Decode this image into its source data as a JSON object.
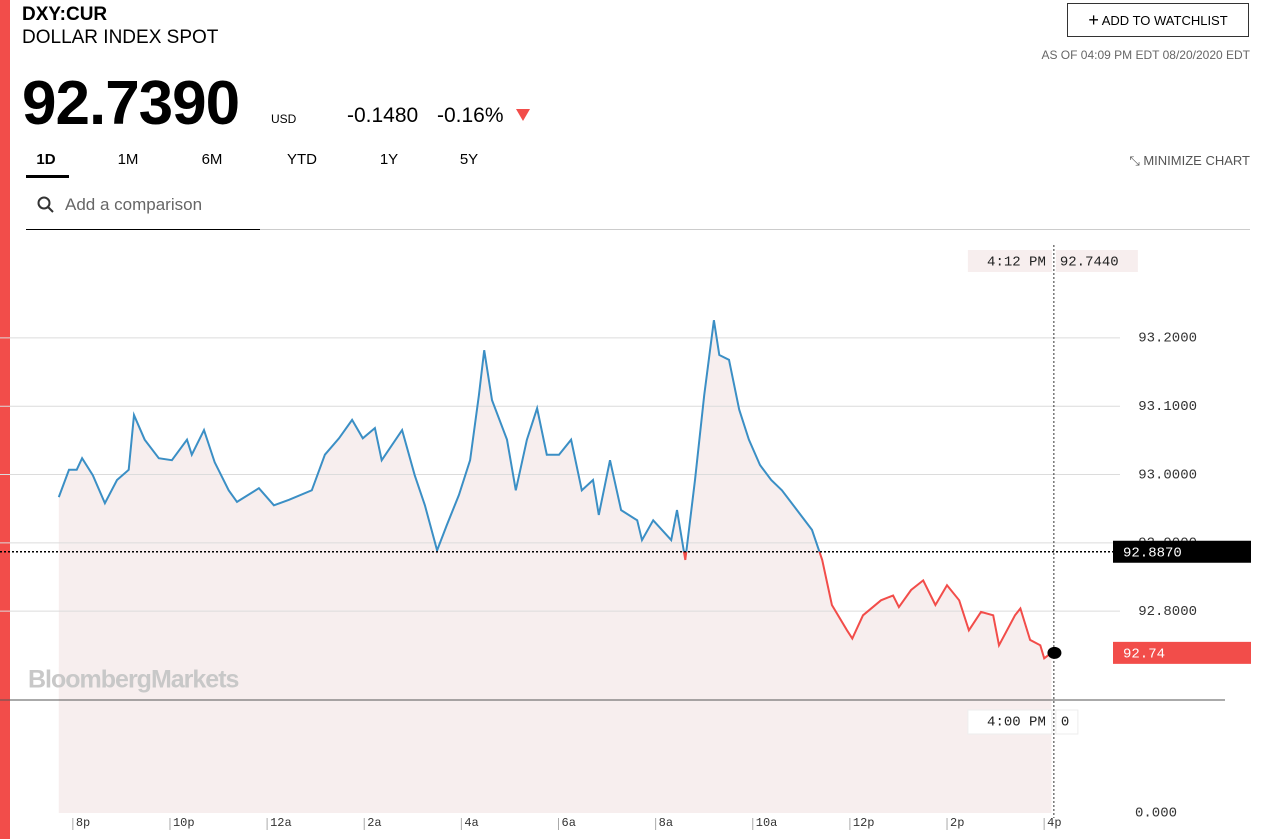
{
  "header": {
    "symbol": "DXY:CUR",
    "name": "DOLLAR INDEX SPOT",
    "price": "92.7390",
    "currency": "USD",
    "change": "-0.1480",
    "change_pct": "-0.16%",
    "watchlist_button": "ADD TO WATCHLIST",
    "as_of": "AS OF 04:09 PM EDT 08/20/2020 EDT",
    "tabs": [
      "1D",
      "1M",
      "6M",
      "YTD",
      "1Y",
      "5Y"
    ],
    "minimize": "MINIMIZE CHART",
    "search_placeholder": "Add a comparison"
  },
  "chart_data": {
    "type": "line",
    "watermark": "BloombergMarkets",
    "x": [
      -0.29,
      -0.08,
      0.08,
      0.19,
      0.41,
      0.66,
      0.91,
      1.15,
      1.26,
      1.48,
      1.77,
      2.04,
      2.35,
      2.45,
      2.7,
      2.92,
      3.21,
      3.38,
      3.83,
      4.14,
      4.45,
      4.92,
      5.19,
      5.48,
      5.75,
      5.97,
      6.22,
      6.36,
      6.78,
      7.04,
      7.25,
      7.5,
      7.7,
      7.95,
      8.18,
      8.36,
      8.47,
      8.63,
      8.94,
      9.12,
      9.35,
      9.56,
      9.76,
      10.01,
      10.26,
      10.48,
      10.71,
      10.83,
      11.06,
      11.29,
      11.62,
      11.72,
      11.95,
      12.32,
      12.44,
      12.61,
      12.81,
      13.0,
      13.2,
      13.31,
      13.51,
      13.72,
      13.92,
      14.15,
      14.38,
      14.6,
      14.91,
      15.22,
      15.43,
      15.63,
      15.94,
      16.05,
      16.27,
      16.64,
      16.89,
      17.01,
      17.26,
      17.51,
      17.76,
      18.0,
      18.25,
      18.45,
      18.7,
      18.95,
      19.07,
      19.4,
      19.51,
      19.71,
      19.92,
      20.0,
      20.15
    ],
    "values": [
      92.967,
      93.007,
      93.007,
      93.024,
      92.999,
      92.958,
      92.992,
      93.007,
      93.087,
      93.051,
      93.024,
      93.021,
      93.051,
      93.029,
      93.065,
      93.018,
      92.977,
      92.96,
      92.98,
      92.955,
      92.963,
      92.977,
      93.029,
      93.053,
      93.08,
      93.053,
      93.068,
      93.021,
      93.065,
      92.999,
      92.955,
      92.889,
      92.926,
      92.97,
      93.021,
      93.116,
      93.182,
      93.109,
      93.051,
      92.977,
      93.051,
      93.097,
      93.029,
      93.029,
      93.051,
      92.977,
      92.992,
      92.941,
      93.021,
      92.948,
      92.933,
      92.904,
      92.933,
      92.904,
      92.948,
      92.875,
      92.992,
      93.116,
      93.226,
      93.175,
      93.168,
      93.095,
      93.051,
      93.014,
      92.992,
      92.977,
      92.948,
      92.919,
      92.875,
      92.809,
      92.772,
      92.76,
      92.794,
      92.816,
      92.823,
      92.806,
      92.831,
      92.845,
      92.809,
      92.838,
      92.816,
      92.772,
      92.799,
      92.794,
      92.75,
      92.794,
      92.804,
      92.758,
      92.75,
      92.731,
      92.739
    ],
    "line_color": "#3b8fc5",
    "below_close_color": "#f24d4a",
    "fill_color": "#f7eeee",
    "xlim": [
      -1.5,
      21.5
    ],
    "xticks": [
      {
        "value": 0,
        "label": "8p"
      },
      {
        "value": 2,
        "label": "10p"
      },
      {
        "value": 4,
        "label": "12a"
      },
      {
        "value": 6,
        "label": "2a"
      },
      {
        "value": 8,
        "label": "4a"
      },
      {
        "value": 10,
        "label": "6a"
      },
      {
        "value": 12,
        "label": "8a"
      },
      {
        "value": 14,
        "label": "10a"
      },
      {
        "value": 16,
        "label": "12p"
      },
      {
        "value": 18,
        "label": "2p"
      },
      {
        "value": 20,
        "label": "4p"
      }
    ],
    "ylim": [
      92.67,
      93.336
    ],
    "yticks": [
      {
        "value": 92.8,
        "label": "92.8000"
      },
      {
        "value": 92.9,
        "label": "92.9000"
      },
      {
        "value": 93.0,
        "label": "93.0000"
      },
      {
        "value": 93.1,
        "label": "93.1000"
      },
      {
        "value": 93.2,
        "label": "93.2000"
      }
    ],
    "grid": true,
    "previous_close": {
      "value": 92.887,
      "label": "92.8870"
    },
    "last_label": "92.74",
    "crosshair": {
      "x": 20.2,
      "time_label": "4:12 PM",
      "value_label": "92.7440"
    },
    "volume_crosshair": {
      "time_label": "4:00 PM",
      "value_label": "0"
    },
    "volume_tick": {
      "value": 0,
      "label": "0.000"
    }
  }
}
